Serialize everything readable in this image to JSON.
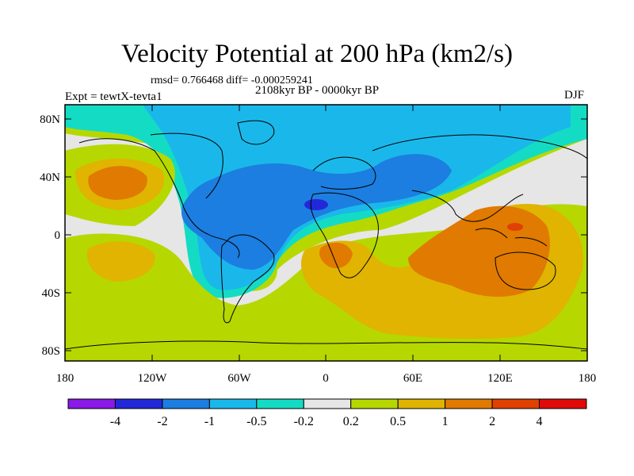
{
  "title": "Velocity Potential at 200 hPa (km2/s)",
  "stats": "rmsd= 0.766468 diff= -0.000259241",
  "period": "2108kyr BP - 0000kyr BP",
  "experiment": "Expt = tewtX-tevta1",
  "season": "DJF",
  "axes": {
    "x_ticks": [
      "180",
      "120W",
      "60W",
      "0",
      "60E",
      "120E",
      "180"
    ],
    "y_ticks": [
      "80N",
      "40N",
      "0",
      "40S",
      "80S"
    ]
  },
  "colorbar": {
    "labels": [
      "-4",
      "-2",
      "-1",
      "-0.5",
      "-0.2",
      "0.2",
      "0.5",
      "1",
      "2",
      "4"
    ],
    "colors": [
      "#8a1ae8",
      "#2228d8",
      "#1c7ee0",
      "#1ab8ea",
      "#14dcc4",
      "#e6e6e6",
      "#b6d800",
      "#e0b400",
      "#e07a00",
      "#e04000",
      "#e00a0a"
    ]
  },
  "field_colors": {
    "neg_strong": "#1c7ee0",
    "neg_mid": "#1ab8ea",
    "neg_weak": "#14dcc4",
    "neutral": "#e6e6e6",
    "pos_weak": "#b6d800",
    "pos_mid": "#e0b400",
    "pos_strong": "#e07a00",
    "pos_max": "#e04000",
    "neg_max": "#2228d8"
  }
}
